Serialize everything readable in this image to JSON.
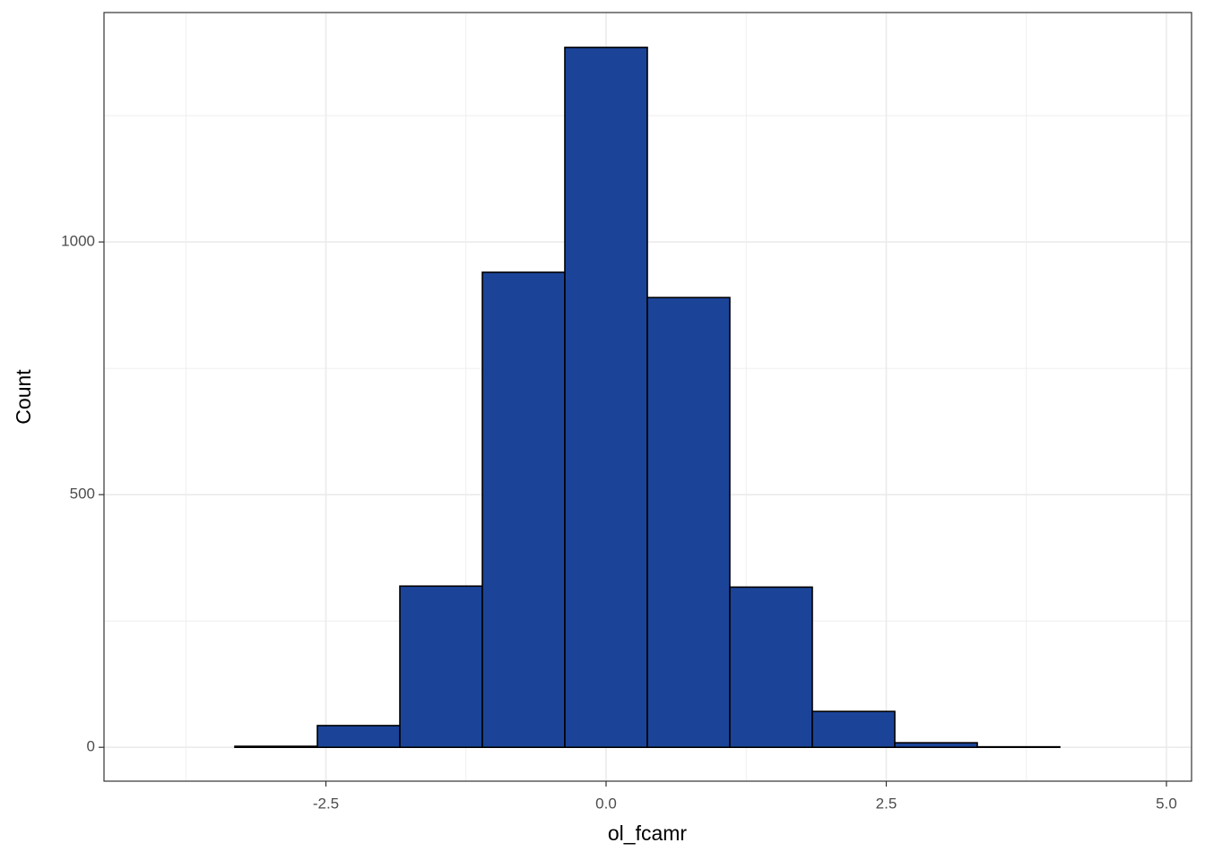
{
  "chart_data": {
    "type": "histogram",
    "x_label": "ol_fcamr",
    "y_label": "Count",
    "bins": [
      -4.048,
      -3.312,
      -2.576,
      -1.84,
      -1.104,
      -0.368,
      0.368,
      1.104,
      1.84,
      2.576,
      3.312,
      4.048,
      4.784
    ],
    "values": [
      0,
      2,
      43,
      319,
      940,
      1385,
      890,
      317,
      71,
      9,
      1,
      0
    ],
    "color": "#1b4499",
    "edge_color": "#000000",
    "xlim": [
      -4.48,
      5.224
    ],
    "ylim": [
      -67,
      1454
    ],
    "xticks": [
      -2.5,
      {
        "value": 0,
        "label": "0.0"
      },
      2.5,
      {
        "value": 5,
        "label": "5.0"
      }
    ],
    "yticks": [
      0,
      500,
      1000
    ],
    "x_minor_grid": [
      -3.75,
      -1.25,
      1.25,
      3.75
    ],
    "y_minor_grid": [
      250,
      750,
      1250
    ],
    "grid": true
  }
}
